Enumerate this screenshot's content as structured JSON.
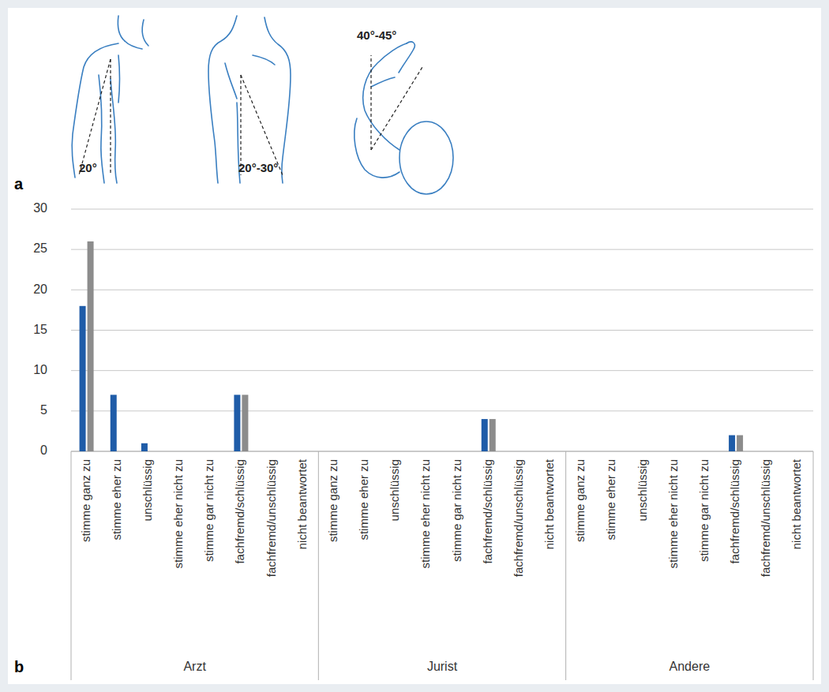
{
  "figure": {
    "panel_a": {
      "letter": "a",
      "labels": [
        "20°",
        "20°-30°",
        "40°-45°"
      ]
    }
  },
  "chart_data": {
    "type": "bar",
    "panel_letter": "b",
    "groups": [
      "Arzt",
      "Jurist",
      "Andere"
    ],
    "categories": [
      "stimme ganz zu",
      "stimme eher zu",
      "unschlüssig",
      "stimme eher nicht zu",
      "stimme gar nicht zu",
      "fachfremd/schlüssig",
      "fachfremd/unschlüssig",
      "nicht beantwortet",
      "stimme ganz zu",
      "stimme eher zu",
      "unschlüssig",
      "stimme eher nicht zu",
      "stimme gar nicht zu",
      "fachfremd/schlüssig",
      "fachfremd/unschlüssig",
      "nicht beantwortet",
      "stimme ganz zu",
      "stimme eher zu",
      "unschlüssig",
      "stimme eher nicht zu",
      "stimme gar nicht zu",
      "fachfremd/schlüssig",
      "fachfremd/unschlüssig",
      "nicht beantwortet"
    ],
    "series": [
      {
        "color": "#1f5ca8",
        "values": [
          18,
          7,
          1,
          0,
          0,
          7,
          0,
          0,
          0,
          0,
          0,
          0,
          0,
          4,
          0,
          0,
          0,
          0,
          0,
          0,
          0,
          2,
          0,
          0
        ]
      },
      {
        "color": "#8c8c8c",
        "values": [
          26,
          0,
          0,
          0,
          0,
          7,
          0,
          0,
          0,
          0,
          0,
          0,
          0,
          4,
          0,
          0,
          0,
          0,
          0,
          0,
          0,
          2,
          0,
          0
        ]
      }
    ],
    "ylim": [
      0,
      30
    ],
    "yticks": [
      0,
      5,
      10,
      15,
      20,
      25,
      30
    ],
    "grid": true
  }
}
